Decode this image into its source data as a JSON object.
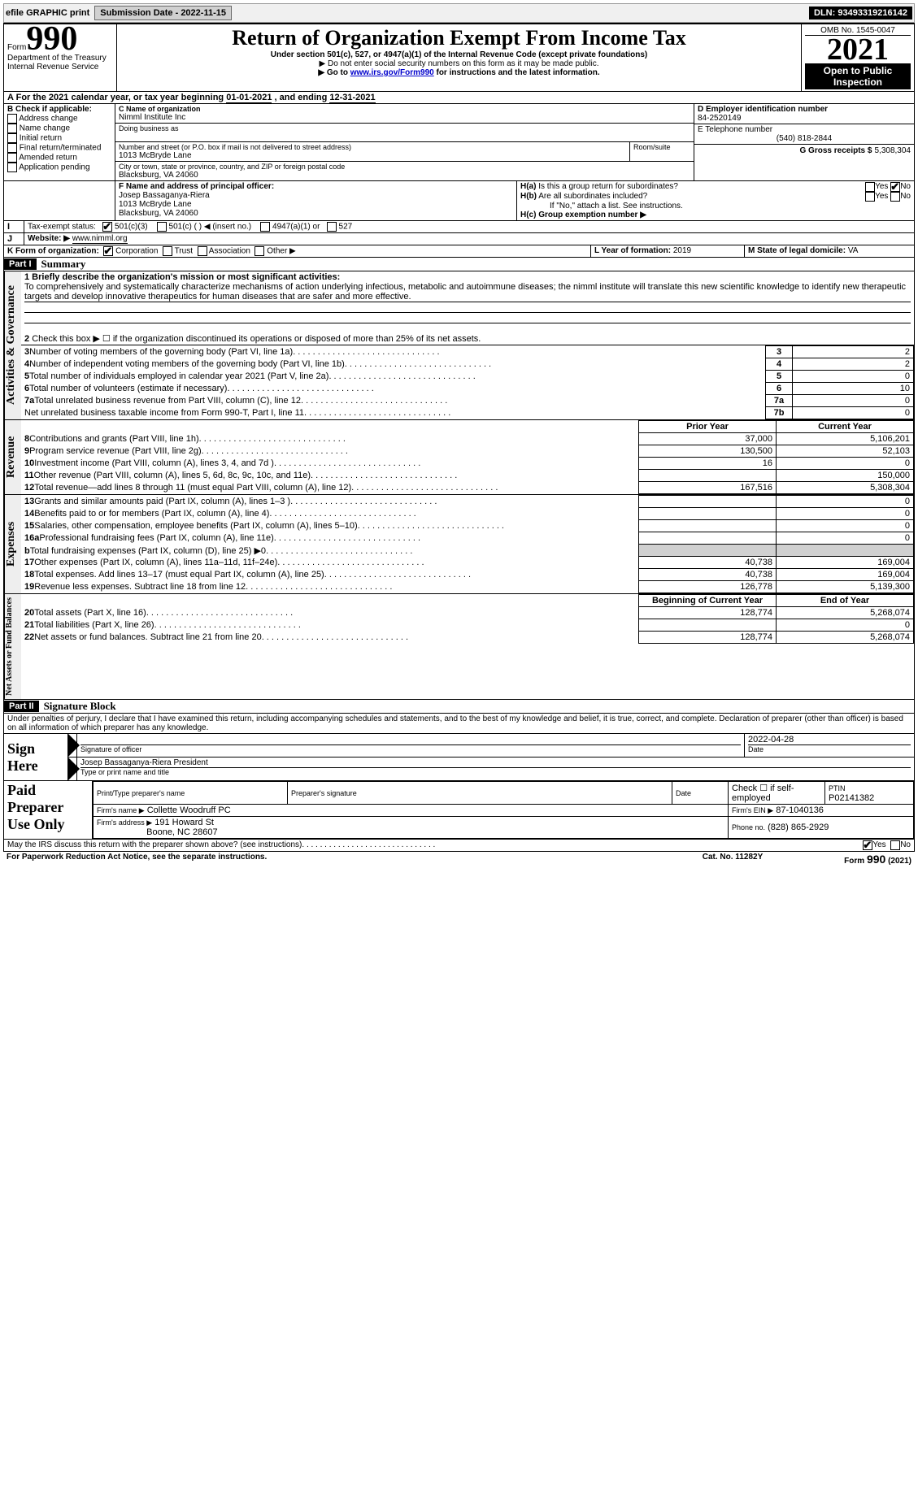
{
  "toolbar": {
    "efile_label": "efile GRAPHIC print",
    "submission_label": "Submission Date - 2022-11-15",
    "dln_label": "DLN: 93493319216142"
  },
  "header": {
    "form_prefix": "Form",
    "form_number": "990",
    "title": "Return of Organization Exempt From Income Tax",
    "subtitle": "Under section 501(c), 527, or 4947(a)(1) of the Internal Revenue Code (except private foundations)",
    "note_ssn": "▶ Do not enter social security numbers on this form as it may be made public.",
    "note_goto_prefix": "▶ Go to ",
    "note_goto_link": "www.irs.gov/Form990",
    "note_goto_suffix": " for instructions and the latest information.",
    "omb": "OMB No. 1545-0047",
    "year": "2021",
    "open": "Open to Public Inspection",
    "dept": "Department of the Treasury",
    "irs": "Internal Revenue Service"
  },
  "line_a": {
    "text": "For the 2021 calendar year, or tax year beginning ",
    "begin": "01-01-2021",
    "mid": "   , and ending ",
    "end": "12-31-2021"
  },
  "box_b": {
    "title": "B Check if applicable:",
    "addr_change": "Address change",
    "name_change": "Name change",
    "initial": "Initial return",
    "final": "Final return/terminated",
    "amended": "Amended return",
    "app_pending": "Application pending"
  },
  "box_c": {
    "c_label": "C Name of organization",
    "org": "Nimml Institute Inc",
    "dba_label": "Doing business as",
    "street_label": "Number and street (or P.O. box if mail is not delivered to street address)",
    "room_label": "Room/suite",
    "street": "1013 McBryde Lane",
    "city_label": "City or town, state or province, country, and ZIP or foreign postal code",
    "city": "Blacksburg, VA  24060"
  },
  "box_d": {
    "label": "D Employer identification number",
    "value": "84-2520149"
  },
  "box_e": {
    "label": "E Telephone number",
    "value": "(540) 818-2844"
  },
  "box_g": {
    "label": "G Gross receipts $",
    "value": "5,308,304"
  },
  "box_f": {
    "label": "F  Name and address of principal officer:",
    "name": "Josep Bassaganya-Riera",
    "street": "1013 McBryde Lane",
    "city": "Blacksburg, VA  24060"
  },
  "box_h": {
    "ha_label": "H(a)  Is this a group return for subordinates?",
    "hb_label": "H(b)  Are all subordinates included?",
    "hb_note": "If \"No,\" attach a list. See instructions.",
    "hc_label": "H(c)  Group exemption number ▶",
    "yes": "Yes",
    "no": "No"
  },
  "box_i": {
    "label": "Tax-exempt status:",
    "c3": "501(c)(3)",
    "c": "501(c) (  ) ◀ (insert no.)",
    "a1": "4947(a)(1) or",
    "s527": "527"
  },
  "box_j": {
    "label": "Website: ▶",
    "value": "www.nimml.org"
  },
  "box_k": {
    "label": "K Form of organization:",
    "corp": "Corporation",
    "trust": "Trust",
    "assoc": "Association",
    "other": "Other ▶"
  },
  "box_l": {
    "label": "L Year of formation:",
    "value": "2019"
  },
  "box_m": {
    "label": "M State of legal domicile:",
    "value": "VA"
  },
  "part1": {
    "hdr": "Part I",
    "title": "Summary",
    "l1_label": "1 Briefly describe the organization's mission or most significant activities:",
    "l1_text": "To comprehensively and systematically characterize mechanisms of action underlying infectious, metabolic and autoimmune diseases; the nimml institute will translate this new scientific knowledge to identify new therapeutic targets and develop innovative therapeutics for human diseases that are safer and more effective.",
    "l2": "Check this box ▶ ☐  if the organization discontinued its operations or disposed of more than 25% of its net assets.",
    "rows_top": [
      {
        "n": "3",
        "label": "Number of voting members of the governing body (Part VI, line 1a)",
        "cell": "3",
        "val": "2"
      },
      {
        "n": "4",
        "label": "Number of independent voting members of the governing body (Part VI, line 1b)",
        "cell": "4",
        "val": "2"
      },
      {
        "n": "5",
        "label": "Total number of individuals employed in calendar year 2021 (Part V, line 2a)",
        "cell": "5",
        "val": "0"
      },
      {
        "n": "6",
        "label": "Total number of volunteers (estimate if necessary)",
        "cell": "6",
        "val": "10"
      },
      {
        "n": "7a",
        "label": "Total unrelated business revenue from Part VIII, column (C), line 12",
        "cell": "7a",
        "val": "0"
      },
      {
        "n": "",
        "label": "Net unrelated business taxable income from Form 990-T, Part I, line 11",
        "cell": "7b",
        "val": "0"
      }
    ],
    "col_prior": "Prior Year",
    "col_current": "Current Year",
    "rows_rev": [
      {
        "n": "8",
        "label": "Contributions and grants (Part VIII, line 1h)",
        "p": "37,000",
        "c": "5,106,201"
      },
      {
        "n": "9",
        "label": "Program service revenue (Part VIII, line 2g)",
        "p": "130,500",
        "c": "52,103"
      },
      {
        "n": "10",
        "label": "Investment income (Part VIII, column (A), lines 3, 4, and 7d )",
        "p": "16",
        "c": "0"
      },
      {
        "n": "11",
        "label": "Other revenue (Part VIII, column (A), lines 5, 6d, 8c, 9c, 10c, and 11e)",
        "p": "",
        "c": "150,000"
      },
      {
        "n": "12",
        "label": "Total revenue—add lines 8 through 11 (must equal Part VIII, column (A), line 12)",
        "p": "167,516",
        "c": "5,308,304"
      }
    ],
    "rows_exp": [
      {
        "n": "13",
        "label": "Grants and similar amounts paid (Part IX, column (A), lines 1–3 )",
        "p": "",
        "c": "0"
      },
      {
        "n": "14",
        "label": "Benefits paid to or for members (Part IX, column (A), line 4)",
        "p": "",
        "c": "0"
      },
      {
        "n": "15",
        "label": "Salaries, other compensation, employee benefits (Part IX, column (A), lines 5–10)",
        "p": "",
        "c": "0"
      },
      {
        "n": "16a",
        "label": "Professional fundraising fees (Part IX, column (A), line 11e)",
        "p": "",
        "c": "0"
      },
      {
        "n": "b",
        "label": "Total fundraising expenses (Part IX, column (D), line 25) ▶0",
        "p": "shade",
        "c": "shade"
      },
      {
        "n": "17",
        "label": "Other expenses (Part IX, column (A), lines 11a–11d, 11f–24e)",
        "p": "40,738",
        "c": "169,004"
      },
      {
        "n": "18",
        "label": "Total expenses. Add lines 13–17 (must equal Part IX, column (A), line 25)",
        "p": "40,738",
        "c": "169,004"
      },
      {
        "n": "19",
        "label": "Revenue less expenses. Subtract line 18 from line 12",
        "p": "126,778",
        "c": "5,139,300"
      }
    ],
    "col_begin": "Beginning of Current Year",
    "col_end": "End of Year",
    "rows_net": [
      {
        "n": "20",
        "label": "Total assets (Part X, line 16)",
        "p": "128,774",
        "c": "5,268,074"
      },
      {
        "n": "21",
        "label": "Total liabilities (Part X, line 26)",
        "p": "",
        "c": "0"
      },
      {
        "n": "22",
        "label": "Net assets or fund balances. Subtract line 21 from line 20",
        "p": "128,774",
        "c": "5,268,074"
      }
    ],
    "tab_gov": "Activities & Governance",
    "tab_rev": "Revenue",
    "tab_exp": "Expenses",
    "tab_net": "Net Assets or Fund Balances"
  },
  "part2": {
    "hdr": "Part II",
    "title": "Signature Block",
    "decl": "Under penalties of perjury, I declare that I have examined this return, including accompanying schedules and statements, and to the best of my knowledge and belief, it is true, correct, and complete. Declaration of preparer (other than officer) is based on all information of which preparer has any knowledge.",
    "sign_here": "Sign Here",
    "sig_officer": "Signature of officer",
    "date": "Date",
    "sig_date": "2022-04-28",
    "name_title": "Josep Bassaganya-Riera  President",
    "type_name": "Type or print name and title",
    "paid_prep": "Paid Preparer Use Only",
    "prep_name_h": "Print/Type preparer's name",
    "prep_sig_h": "Preparer's signature",
    "date_h": "Date",
    "self_emp": "Check ☐ if self-employed",
    "ptin_label": "PTIN",
    "ptin": "P02141382",
    "firm_name_l": "Firm's name    ▶",
    "firm_name": "Collette Woodruff PC",
    "firm_ein_l": "Firm's EIN ▶",
    "firm_ein": "87-1040136",
    "firm_addr_l": "Firm's address ▶",
    "firm_addr1": "191 Howard St",
    "firm_addr2": "Boone, NC  28607",
    "phone_l": "Phone no.",
    "phone": "(828) 865-2929",
    "may_irs": "May the IRS discuss this return with the preparer shown above? (see instructions)",
    "yes": "Yes",
    "no": "No"
  },
  "footer": {
    "pra": "For Paperwork Reduction Act Notice, see the separate instructions.",
    "cat": "Cat. No. 11282Y",
    "form": "Form 990 (2021)"
  }
}
